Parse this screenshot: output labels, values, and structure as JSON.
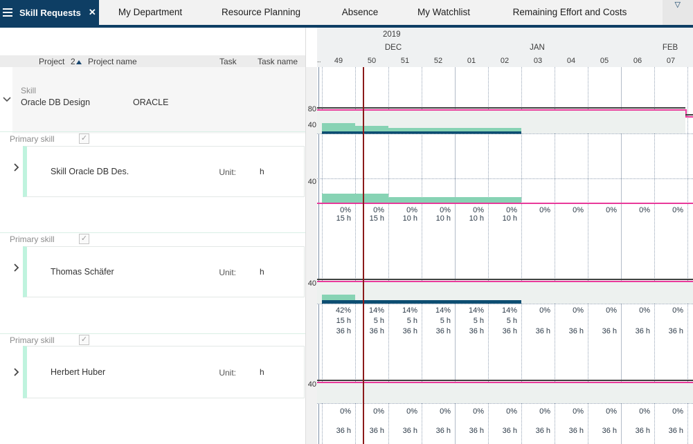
{
  "tabbar": {
    "active_tab": "Skill Requests",
    "close_icon": "✕",
    "tabs": [
      "My Department",
      "Resource Planning",
      "Absence",
      "My Watchlist",
      "Remaining Effort and Costs"
    ],
    "overflow_icon": "▽"
  },
  "left_panel": {
    "header": {
      "project": "Project",
      "sort_number": "2",
      "project_name": "Project name",
      "task": "Task",
      "task_name": "Task name"
    },
    "group": {
      "type": "Skill",
      "name": "Oracle DB Design",
      "project_id": "ORACLE"
    },
    "sections": [
      {
        "label": "Primary skill",
        "checkbox": "✓",
        "resource": "Skill Oracle DB Des.",
        "unit_label": "Unit:",
        "unit": "h"
      },
      {
        "label": "Primary skill",
        "checkbox": "✓",
        "resource": "Thomas Schäfer",
        "unit_label": "Unit:",
        "unit": "h"
      },
      {
        "label": "Primary skill",
        "checkbox": "✓",
        "resource": "Herbert Huber",
        "unit_label": "Unit:",
        "unit": "h"
      }
    ]
  },
  "chart": {
    "year": "2019",
    "months": [
      "DEC",
      "JAN",
      "FEB"
    ],
    "week_partial": "..",
    "weeks": [
      "49",
      "50",
      "51",
      "52",
      "01",
      "02",
      "03",
      "04",
      "05",
      "06",
      "07"
    ],
    "scale": {
      "r1_80": "80",
      "r1_40": "40",
      "r2_40": "40",
      "r3_40": "40",
      "r4_40": "40"
    },
    "rows": {
      "skill": {
        "percents": [
          "0%",
          "0%",
          "0%",
          "0%",
          "0%",
          "0%",
          "0%",
          "0%",
          "0%",
          "0%",
          "0%"
        ],
        "hours": [
          "15 h",
          "15 h",
          "10 h",
          "10 h",
          "10 h",
          "10 h",
          "",
          "",
          "",
          "",
          ""
        ]
      },
      "thomas": {
        "percents": [
          "42%",
          "14%",
          "14%",
          "14%",
          "14%",
          "14%",
          "0%",
          "0%",
          "0%",
          "0%",
          "0%"
        ],
        "planned_hours": [
          "15 h",
          "5 h",
          "5 h",
          "5 h",
          "5 h",
          "5 h",
          "",
          "",
          "",
          "",
          ""
        ],
        "available_hours": [
          "36 h",
          "36 h",
          "36 h",
          "36 h",
          "36 h",
          "36 h",
          "36 h",
          "36 h",
          "36 h",
          "36 h",
          "36 h"
        ]
      },
      "herbert": {
        "percents": [
          "0%",
          "0%",
          "0%",
          "0%",
          "0%",
          "0%",
          "0%",
          "0%",
          "0%",
          "0%",
          "0%"
        ],
        "planned_hours": [
          "",
          "",
          "",
          "",
          "",
          "",
          "",
          "",
          "",
          "",
          ""
        ],
        "available_hours": [
          "36 h",
          "36 h",
          "36 h",
          "36 h",
          "36 h",
          "36 h",
          "36 h",
          "36 h",
          "36 h",
          "36 h",
          "36 h"
        ]
      }
    }
  },
  "colors": {
    "accent_navy": "#0e3e64",
    "bar_teal": "#87d3b4",
    "bar_dark": "#0d4e72",
    "line_pink": "#e8399a",
    "line_black": "#3f3f3f",
    "line_red": "#8b1a1a"
  }
}
